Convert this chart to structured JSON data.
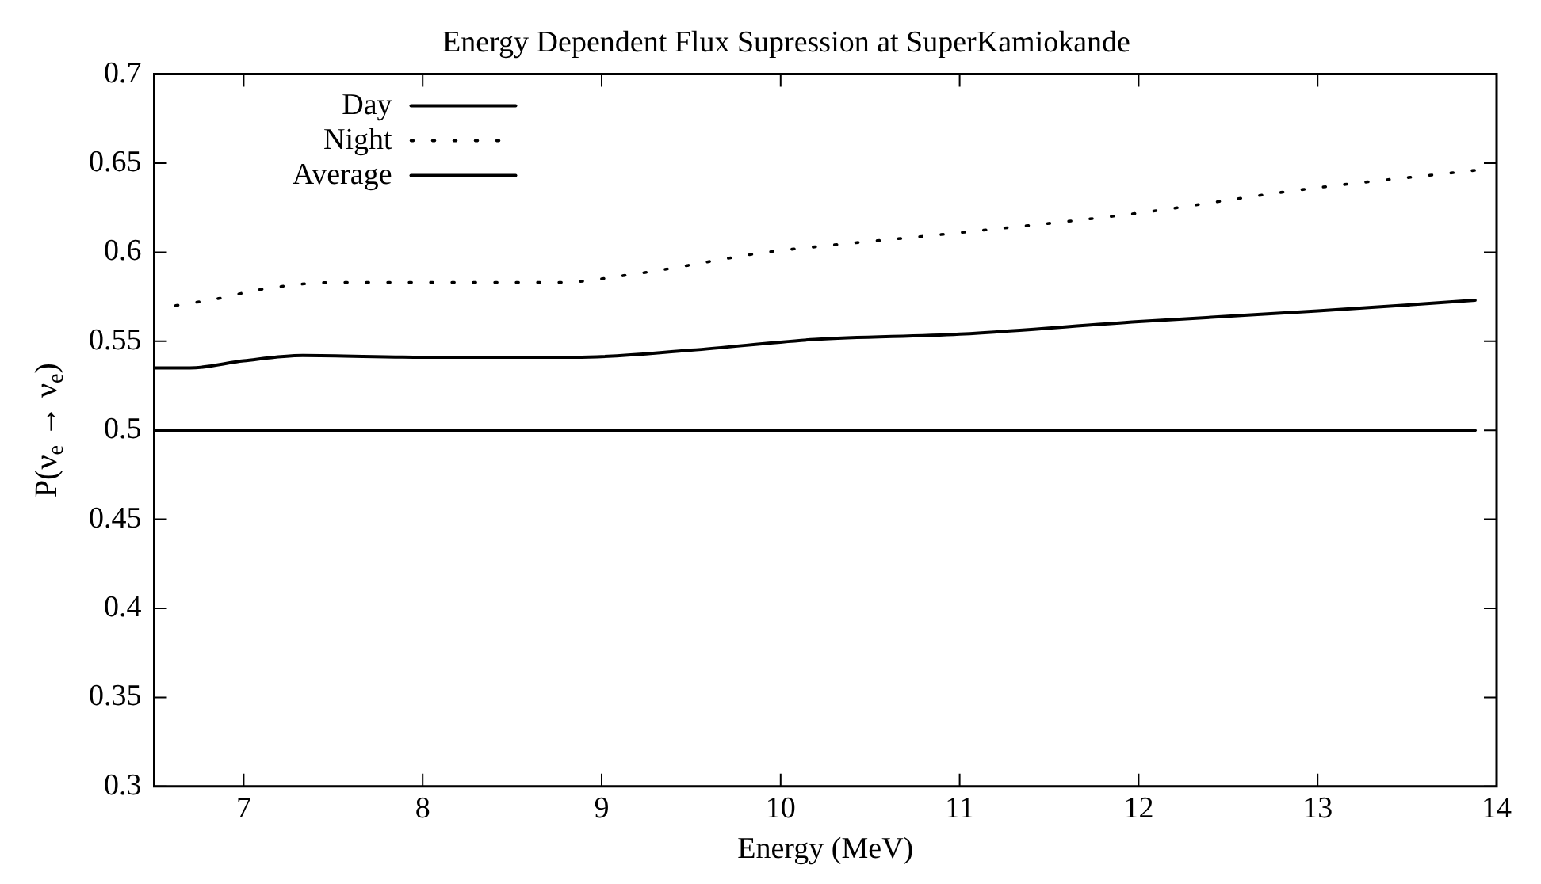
{
  "chart_data": {
    "type": "line",
    "title": "Energy Dependent Flux Supression at SuperKamiokande",
    "xlabel": "Energy (MeV)",
    "ylabel": "P(ν$_{e}$ → ν$_{e}$)",
    "xlim": [
      6.5,
      14
    ],
    "xticks": [
      7,
      8,
      9,
      10,
      11,
      12,
      13,
      14
    ],
    "ylim": [
      0.3,
      0.7
    ],
    "yticks": [
      0.3,
      0.35,
      0.4,
      0.45,
      0.5,
      0.55,
      0.6,
      0.65,
      0.7
    ],
    "grid": false,
    "legend": "top left",
    "series": [
      {
        "name": "Day",
        "color": "#000000",
        "line_style": "solid",
        "x": [
          6.5,
          8,
          10,
          12,
          13.88
        ],
        "values": [
          0.5,
          0.5,
          0.5,
          0.5,
          0.5
        ]
      },
      {
        "name": "Night",
        "color": "#000000",
        "line_style": "dotted",
        "x": [
          6.62,
          6.86,
          7.09,
          7.5,
          8,
          8.75,
          9.2,
          9.92,
          10.19,
          11,
          12,
          12.9,
          13.88
        ],
        "values": [
          0.57,
          0.574,
          0.579,
          0.583,
          0.583,
          0.583,
          0.588,
          0.6,
          0.603,
          0.611,
          0.622,
          0.635,
          0.646
        ]
      },
      {
        "name": "Average",
        "color": "#000000",
        "line_style": "solid",
        "x": [
          6.5,
          6.7,
          7,
          7.33,
          8,
          8.85,
          9.5,
          10.19,
          11,
          12,
          13,
          13.88
        ],
        "values": [
          0.535,
          0.535,
          0.539,
          0.542,
          0.541,
          0.541,
          0.545,
          0.551,
          0.554,
          0.561,
          0.567,
          0.573
        ]
      }
    ]
  }
}
